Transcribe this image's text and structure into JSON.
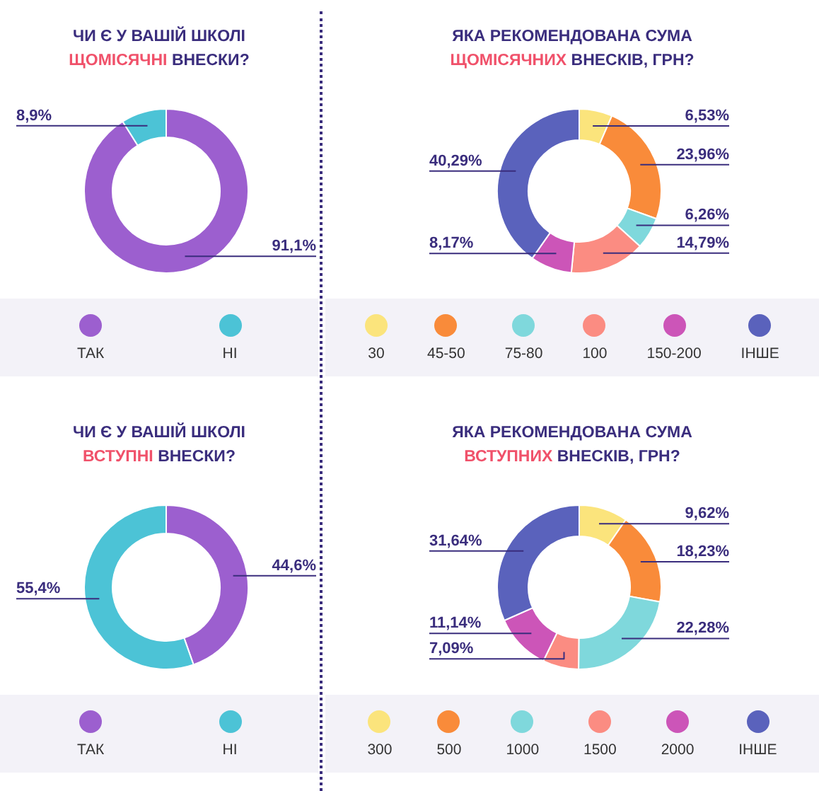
{
  "chart_data": [
    {
      "type": "donut",
      "title": "ЧИ Є У ВАШІЙ ШКОЛІ\nЩОМІСЯЧНІ ВНЕСКИ?",
      "categories": [
        "ТАК",
        "НІ"
      ],
      "values": [
        91.1,
        8.9
      ],
      "colors": [
        "#9c5fcf",
        "#4cc3d6"
      ],
      "value_labels": [
        "91,1%",
        "8,9%"
      ],
      "legend": "bottom"
    },
    {
      "type": "donut",
      "title": "ЯКА РЕКОМЕНДОВАНА СУМА\nЩОМІСЯЧНИХ ВНЕСКІВ, ГРН?",
      "categories": [
        "30",
        "45-50",
        "75-80",
        "100",
        "150-200",
        "ІНШЕ"
      ],
      "values": [
        6.53,
        23.96,
        6.26,
        14.79,
        8.17,
        40.29
      ],
      "colors": [
        "#fbe47c",
        "#f98b3a",
        "#7fd8dc",
        "#fb8c82",
        "#cc55b8",
        "#5a62bc"
      ],
      "value_labels": [
        "6,53%",
        "23,96%",
        "6,26%",
        "14,79%",
        "8,17%",
        "40,29%"
      ],
      "legend": "bottom"
    },
    {
      "type": "donut",
      "title": "ЧИ Є У ВАШІЙ ШКОЛІ\nВСТУПНІ ВНЕСКИ?",
      "categories": [
        "ТАК",
        "НІ"
      ],
      "values": [
        44.6,
        55.4
      ],
      "colors": [
        "#9c5fcf",
        "#4cc3d6"
      ],
      "value_labels": [
        "44,6%",
        "55,4%"
      ],
      "legend": "bottom"
    },
    {
      "type": "donut",
      "title": "ЯКА РЕКОМЕНДОВАНА СУМА\nВСТУПНИХ ВНЕСКІВ, ГРН?",
      "categories": [
        "300",
        "500",
        "1000",
        "1500",
        "2000",
        "ІНШЕ"
      ],
      "values": [
        9.62,
        18.23,
        22.28,
        7.09,
        11.14,
        31.64
      ],
      "colors": [
        "#fbe47c",
        "#f98b3a",
        "#7fd8dc",
        "#fb8c82",
        "#cc55b8",
        "#5a62bc"
      ],
      "value_labels": [
        "9,62%",
        "18,23%",
        "22,28%",
        "7,09%",
        "11,14%",
        "31,64%"
      ],
      "legend": "bottom"
    }
  ]
}
